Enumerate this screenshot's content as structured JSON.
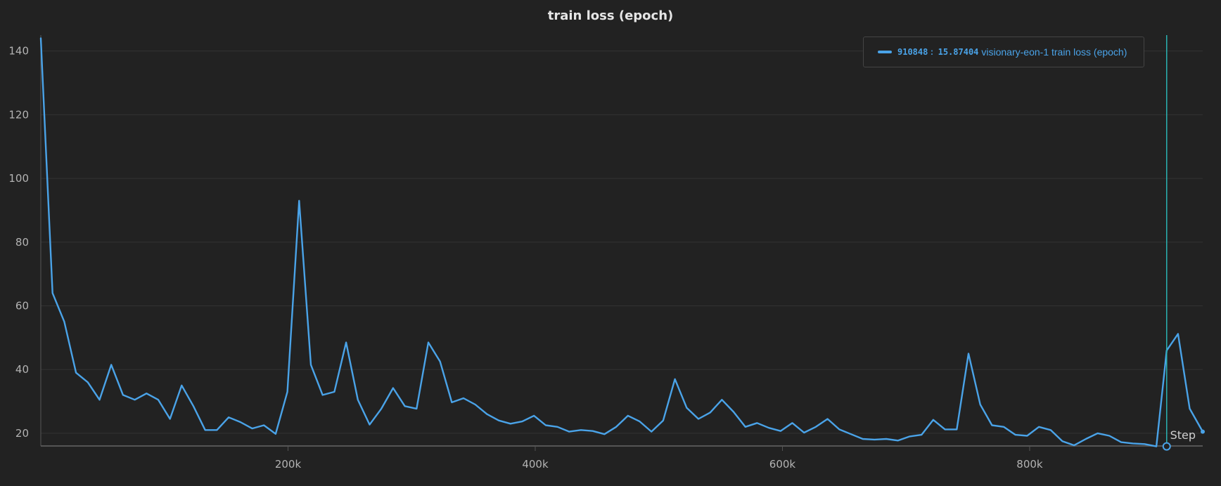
{
  "chart_data": {
    "type": "line",
    "title": "train loss (epoch)",
    "xlabel": "Step",
    "ylabel": "",
    "xlim": [
      0,
      940000
    ],
    "ylim": [
      16,
      145
    ],
    "x_ticks": [
      200000,
      400000,
      600000,
      800000
    ],
    "x_tick_labels": [
      "200k",
      "400k",
      "600k",
      "800k"
    ],
    "y_ticks": [
      20,
      40,
      60,
      80,
      100,
      120,
      140
    ],
    "y_tick_labels": [
      "20",
      "40",
      "60",
      "80",
      "100",
      "120",
      "140"
    ],
    "grid": true,
    "legend_position": "top-right",
    "colors": {
      "series": "#4aa3e8",
      "cursor": "#2ab3b3",
      "grid": "#333333",
      "axis": "#555555"
    },
    "series": [
      {
        "name": "visionary-eon-1 train loss (epoch)",
        "x": [
          0,
          9500,
          19000,
          28500,
          38000,
          47500,
          57000,
          66500,
          76000,
          85500,
          95000,
          104500,
          114000,
          123500,
          133000,
          142500,
          152000,
          161500,
          171000,
          180500,
          190000,
          199500,
          209000,
          218500,
          228000,
          237500,
          247000,
          256500,
          266000,
          275500,
          285000,
          294500,
          304000,
          313500,
          323000,
          332500,
          342000,
          351500,
          361000,
          370500,
          380000,
          389500,
          399000,
          408500,
          418000,
          427500,
          437000,
          446500,
          456000,
          465500,
          475000,
          484500,
          494000,
          503500,
          513000,
          522500,
          532000,
          541500,
          551000,
          560500,
          570000,
          579500,
          589000,
          598500,
          608000,
          617500,
          627000,
          636500,
          646000,
          655500,
          665000,
          674500,
          684000,
          693500,
          703000,
          712500,
          722000,
          731500,
          741000,
          750500,
          760000,
          769500,
          779000,
          788500,
          798000,
          807500,
          817000,
          826500,
          836000,
          845500,
          855000,
          864500,
          874000,
          883500,
          893000,
          902500,
          910848,
          920000,
          929500,
          940000
        ],
        "y": [
          144,
          64,
          55,
          39,
          36,
          30.5,
          41.5,
          32,
          30.5,
          32.5,
          30.5,
          24.5,
          35,
          28.5,
          21,
          21,
          25,
          23.5,
          21.5,
          22.5,
          19.8,
          33,
          93,
          41.5,
          32,
          33,
          48.5,
          30.5,
          22.7,
          27.7,
          34.2,
          28.5,
          27.7,
          48.5,
          42.5,
          29.7,
          31,
          29,
          26,
          24,
          23,
          23.7,
          25.5,
          22.5,
          22,
          20.5,
          21,
          20.7,
          19.7,
          22,
          25.5,
          23.7,
          20.5,
          24,
          37,
          28,
          24.5,
          26.5,
          30.5,
          26.7,
          22,
          23.2,
          21.7,
          20.7,
          23.2,
          20.2,
          22,
          24.5,
          21.2,
          19.7,
          18.2,
          18,
          18.2,
          17.7,
          19,
          19.5,
          24.2,
          21.2,
          21.2,
          45,
          29,
          22.5,
          22,
          19.5,
          19.2,
          22,
          21,
          17.5,
          16.2,
          18.2,
          20,
          19.2,
          17.2,
          16.8,
          16.6,
          15.87,
          46,
          51.2,
          27.7,
          20.5
        ]
      }
    ],
    "cursor": {
      "step": 910848,
      "value": 15.87404
    }
  },
  "legend": {
    "step_text": "910848",
    "separator": ":",
    "value_text": "15.87404",
    "series_label": "visionary-eon-1 train loss (epoch)"
  }
}
